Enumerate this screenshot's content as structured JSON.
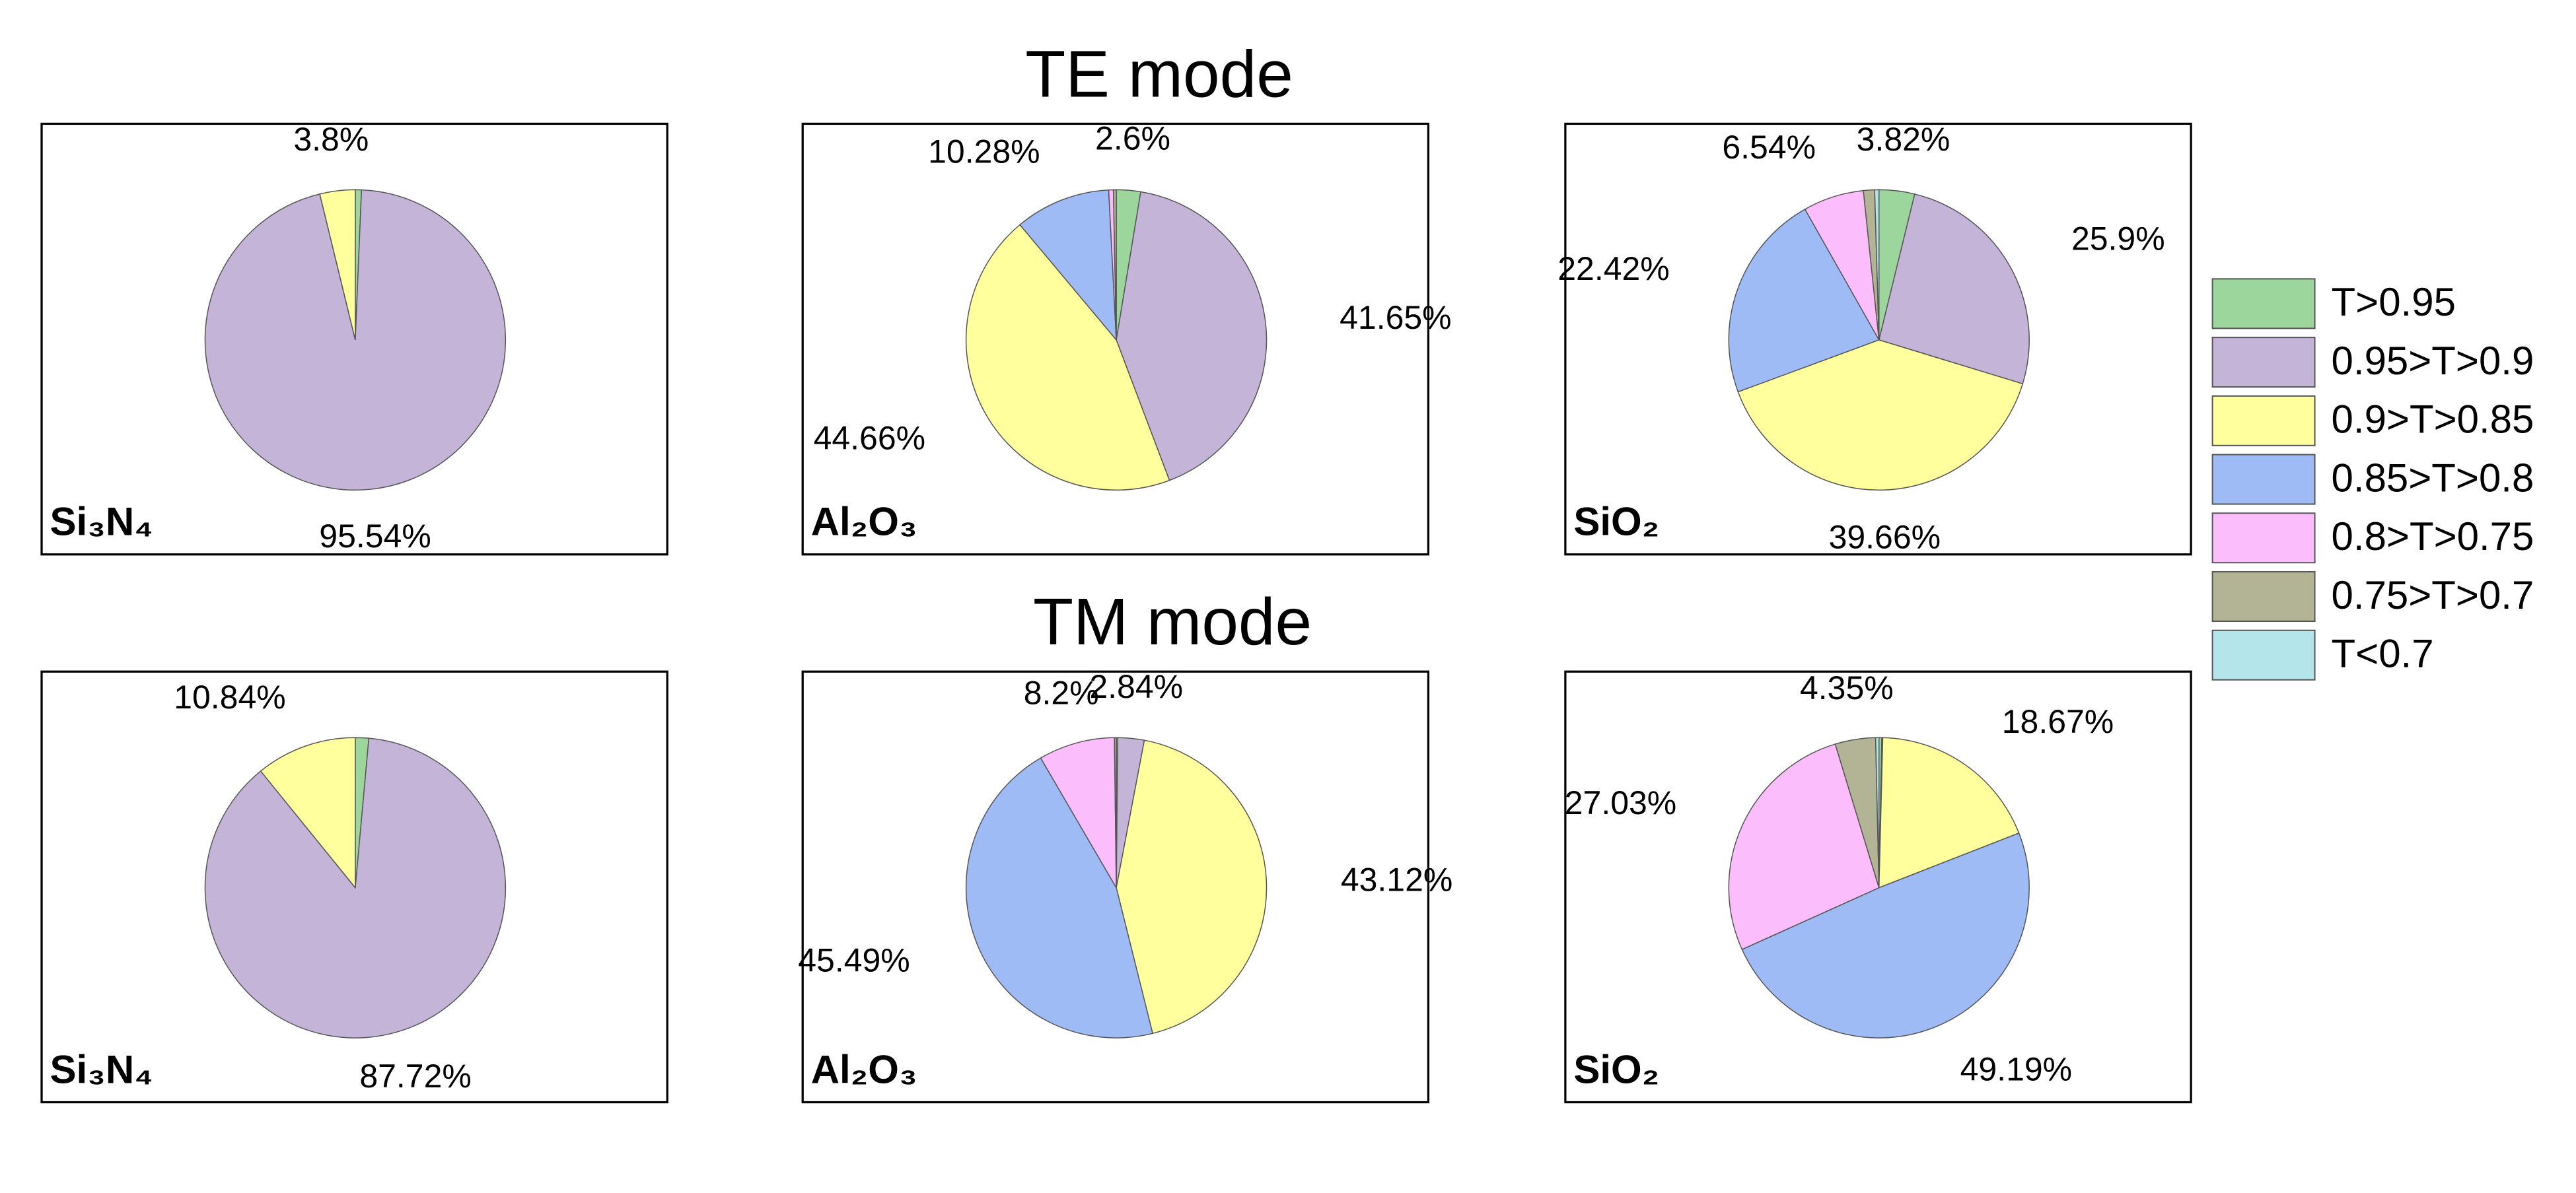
{
  "sections": [
    {
      "title": "TE mode"
    },
    {
      "title": "TM mode"
    }
  ],
  "legend": {
    "categories": [
      "T>0.95",
      "0.95>T>0.9",
      "0.9>T>0.85",
      "0.85>T>0.8",
      "0.8>T>0.75",
      "0.75>T>0.7",
      "T<0.7"
    ],
    "colors": [
      "#9dd69d",
      "#c4b5d8",
      "#ffff9e",
      "#9ebbf5",
      "#fbbdfb",
      "#b3b395",
      "#b3e5ea"
    ]
  },
  "chart_data": [
    {
      "type": "pie",
      "title": "Si₃N₄",
      "values": [
        0.66,
        95.54,
        3.8,
        0,
        0,
        0,
        0
      ],
      "value_labels": [
        null,
        "95.54%",
        "3.8%",
        null,
        null,
        null,
        null
      ]
    },
    {
      "type": "pie",
      "title": "Al₂O₃",
      "values": [
        2.6,
        41.65,
        44.66,
        10.28,
        0.5,
        0.31,
        0
      ],
      "value_labels": [
        "2.6%",
        "41.65%",
        "44.66%",
        "10.28%",
        null,
        null,
        null
      ]
    },
    {
      "type": "pie",
      "title": "SiO₂",
      "values": [
        3.82,
        25.9,
        39.66,
        22.42,
        6.54,
        1.2,
        0.46
      ],
      "value_labels": [
        "3.82%",
        "25.9%",
        "39.66%",
        "22.42%",
        "6.54%",
        null,
        null
      ]
    },
    {
      "type": "pie",
      "title": "Si₃N₄",
      "values": [
        1.44,
        87.72,
        10.84,
        0,
        0,
        0,
        0
      ],
      "value_labels": [
        null,
        "87.72%",
        "10.84%",
        null,
        null,
        null,
        null
      ]
    },
    {
      "type": "pie",
      "title": "Al₂O₃",
      "values": [
        0.15,
        2.84,
        43.12,
        45.49,
        8.2,
        0.2,
        0
      ],
      "value_labels": [
        null,
        "2.84%",
        "43.12%",
        "45.49%",
        "8.2%",
        null,
        null
      ]
    },
    {
      "type": "pie",
      "title": "SiO₂",
      "values": [
        0.3,
        0.1,
        18.67,
        49.19,
        27.03,
        4.35,
        0.36
      ],
      "value_labels": [
        null,
        null,
        "18.67%",
        "49.19%",
        "27.03%",
        "4.35%",
        null
      ]
    }
  ]
}
